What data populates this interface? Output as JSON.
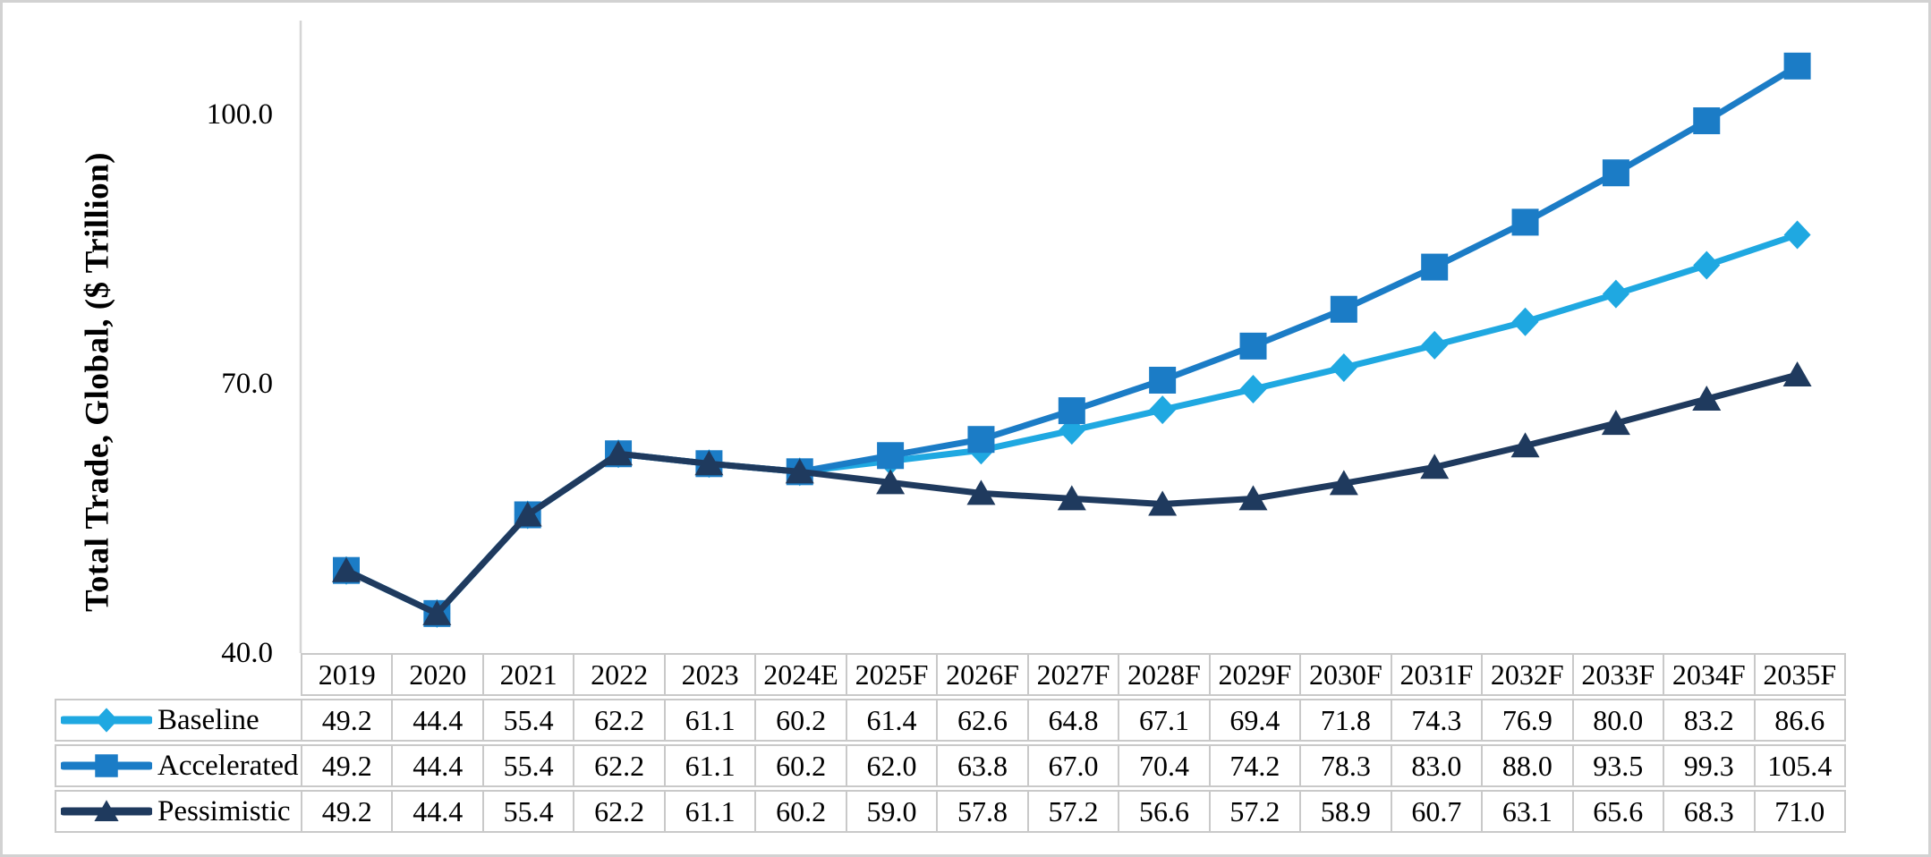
{
  "chart_data": {
    "type": "line",
    "title": "",
    "xlabel": "",
    "ylabel": "Total Trade, Global, ($ Trillion)",
    "ylim": [
      40,
      110
    ],
    "grid": false,
    "legend_position": "table-rows-left-of-data-table",
    "value_decimals": 1,
    "yticks": [
      {
        "value": 100.0,
        "label": "100.0"
      },
      {
        "value": 70.0,
        "label": "70.0"
      },
      {
        "value": 40.0,
        "label": "40.0"
      }
    ],
    "categories": [
      "2019",
      "2020",
      "2021",
      "2022",
      "2023",
      "2024E",
      "2025F",
      "2026F",
      "2027F",
      "2028F",
      "2029F",
      "2030F",
      "2031F",
      "2032F",
      "2033F",
      "2034F",
      "2035F"
    ],
    "series": [
      {
        "name": "Baseline",
        "marker": "diamond",
        "color": "#1FA8E1",
        "values": [
          49.2,
          44.4,
          55.4,
          62.2,
          61.1,
          60.2,
          61.4,
          62.6,
          64.8,
          67.1,
          69.4,
          71.8,
          74.3,
          76.9,
          80.0,
          83.2,
          86.6
        ]
      },
      {
        "name": "Accelerated",
        "marker": "square",
        "color": "#1B7CC6",
        "values": [
          49.2,
          44.4,
          55.4,
          62.2,
          61.1,
          60.2,
          62.0,
          63.8,
          67.0,
          70.4,
          74.2,
          78.3,
          83.0,
          88.0,
          93.5,
          99.3,
          105.4
        ]
      },
      {
        "name": "Pessimistic",
        "marker": "triangle",
        "color": "#1F3A5E",
        "values": [
          49.2,
          44.4,
          55.4,
          62.2,
          61.1,
          60.2,
          59.0,
          57.8,
          57.2,
          56.6,
          57.2,
          58.9,
          60.7,
          63.1,
          65.6,
          68.3,
          71.0
        ]
      }
    ]
  },
  "styles": {
    "frame_border_color": "#d2d2d2",
    "table_border_color": "#c9c9c9",
    "axis_line_color": "#d5d5d5",
    "text_color": "#000000",
    "background": "#ffffff"
  }
}
